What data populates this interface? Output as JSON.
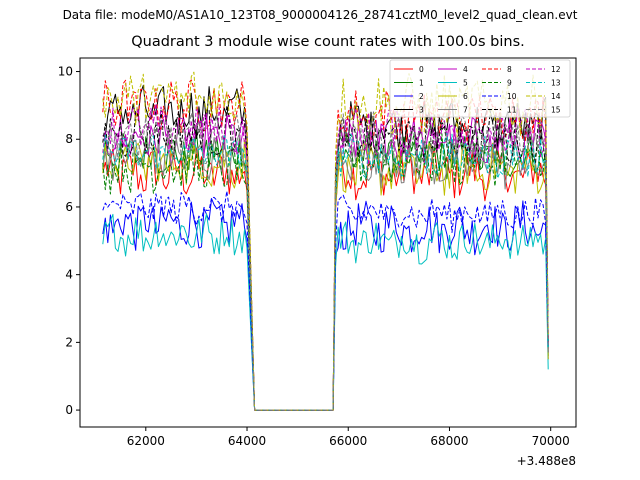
{
  "figure": {
    "suptitle": "Data file: modeM0/AS1A10_123T08_9000004126_28741cztM0_level2_quad_clean.evt"
  },
  "chart_data": {
    "type": "line",
    "title": "Quadrant 3 module wise count rates with 100.0s bins.",
    "xlabel": "",
    "ylabel": "",
    "x_offset_label": "+3.488e8",
    "xlim": [
      60700,
      70500
    ],
    "ylim": [
      -0.5,
      10.4
    ],
    "xticks": [
      62000,
      64000,
      66000,
      68000,
      70000
    ],
    "xtick_labels": [
      "62000",
      "64000",
      "66000",
      "68000",
      "70000"
    ],
    "yticks": [
      0,
      2,
      4,
      6,
      8,
      10
    ],
    "ytick_labels": [
      "0",
      "2",
      "4",
      "6",
      "8",
      "10"
    ],
    "grid": false,
    "legend_placement": "top-right",
    "legend_columns": 4,
    "segments": [
      {
        "start": 61150,
        "end": 64050,
        "step": 50
      },
      {
        "start": 65750,
        "end": 69950,
        "step": 50
      }
    ],
    "gap": {
      "start_x": 64150,
      "end_x": 65700,
      "value": 0
    },
    "series": [
      {
        "name": "0",
        "color": "#ff0000",
        "dash": "solid",
        "mean1": 7.0,
        "mean2": 7.0,
        "amp": 0.3,
        "first": 7.0,
        "last": 1.7
      },
      {
        "name": "1",
        "color": "#008000",
        "dash": "solid",
        "mean1": 7.6,
        "mean2": 7.5,
        "amp": 0.25,
        "first": 7.1,
        "last": 1.6
      },
      {
        "name": "2",
        "color": "#0000ff",
        "dash": "solid",
        "mean1": 5.5,
        "mean2": 5.4,
        "amp": 0.3,
        "first": 5.2,
        "last": 1.5
      },
      {
        "name": "3",
        "color": "#000000",
        "dash": "solid",
        "mean1": 8.8,
        "mean2": 8.4,
        "amp": 0.3,
        "first": 8.1,
        "last": 2.0
      },
      {
        "name": "4",
        "color": "#c000c0",
        "dash": "solid",
        "mean1": 8.0,
        "mean2": 7.9,
        "amp": 0.3,
        "first": 8.1,
        "last": 1.8
      },
      {
        "name": "5",
        "color": "#00bfbf",
        "dash": "solid",
        "mean1": 5.2,
        "mean2": 5.0,
        "amp": 0.25,
        "first": 4.9,
        "last": 1.2
      },
      {
        "name": "6",
        "color": "#bfbf00",
        "dash": "solid",
        "mean1": 7.3,
        "mean2": 7.1,
        "amp": 0.3,
        "first": 7.0,
        "last": 1.5
      },
      {
        "name": "7",
        "color": "#808080",
        "dash": "solid",
        "mean1": 7.5,
        "mean2": 7.3,
        "amp": 0.3,
        "first": 7.2,
        "last": 1.7
      },
      {
        "name": "8",
        "color": "#ff0000",
        "dash": "dashed",
        "mean1": 9.0,
        "mean2": 8.7,
        "amp": 0.3,
        "first": 8.8,
        "last": 2.1
      },
      {
        "name": "9",
        "color": "#008000",
        "dash": "dashed",
        "mean1": 7.2,
        "mean2": 7.4,
        "amp": 0.3,
        "first": 7.3,
        "last": 1.8
      },
      {
        "name": "10",
        "color": "#0000ff",
        "dash": "dashed",
        "mean1": 6.0,
        "mean2": 5.8,
        "amp": 0.2,
        "first": 5.9,
        "last": 1.9
      },
      {
        "name": "11",
        "color": "#000000",
        "dash": "dashed",
        "mean1": 8.2,
        "mean2": 8.0,
        "amp": 0.3,
        "first": 7.9,
        "last": 2.0
      },
      {
        "name": "12",
        "color": "#c000c0",
        "dash": "dashed",
        "mean1": 8.3,
        "mean2": 8.2,
        "amp": 0.3,
        "first": 7.6,
        "last": 2.0
      },
      {
        "name": "13",
        "color": "#00bfbf",
        "dash": "dashed",
        "mean1": 7.6,
        "mean2": 7.5,
        "amp": 0.25,
        "first": 7.4,
        "last": 1.8
      },
      {
        "name": "14",
        "color": "#bfbf00",
        "dash": "dashed",
        "mean1": 9.2,
        "mean2": 9.0,
        "amp": 0.35,
        "first": 9.2,
        "last": 2.2
      },
      {
        "name": "15",
        "color": "#808080",
        "dash": "dashed",
        "mean1": 8.0,
        "mean2": 8.0,
        "amp": 0.3,
        "first": 7.7,
        "last": 1.9
      }
    ]
  }
}
